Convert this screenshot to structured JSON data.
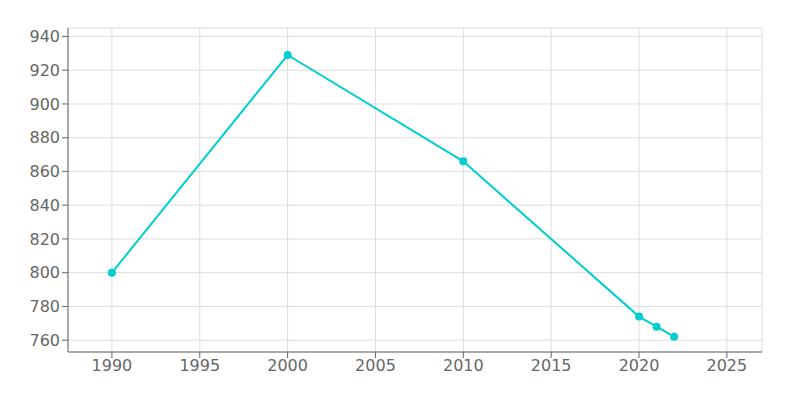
{
  "chart_data": {
    "type": "line",
    "x": [
      1990,
      2000,
      2010,
      2020,
      2021,
      2022
    ],
    "values": [
      800,
      929,
      866,
      774,
      768,
      762
    ],
    "color": "#00CED1",
    "marker": "circle",
    "xlim": [
      1987.5,
      2027.0
    ],
    "xticks": [
      1990,
      1995,
      2000,
      2005,
      2010,
      2015,
      2020,
      2025
    ],
    "ylim": [
      753,
      945
    ],
    "yticks": [
      760,
      780,
      800,
      820,
      840,
      860,
      880,
      900,
      920,
      940
    ],
    "grid": true
  }
}
